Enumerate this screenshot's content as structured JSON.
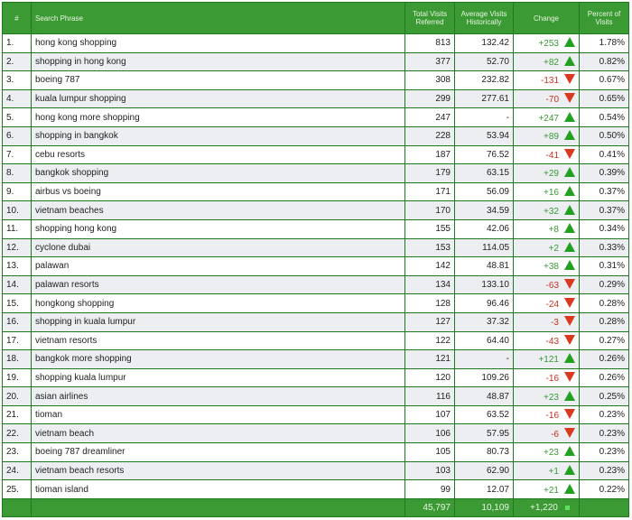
{
  "header": {
    "index": "#",
    "phrase": "Search Phrase",
    "total": "Total Visits Referred",
    "average": "Average Visits Historically",
    "change": "Change",
    "percent": "Percent of Visits"
  },
  "rows": [
    {
      "n": "1.",
      "phrase": "hong kong shopping",
      "total": "813",
      "avg": "132.42",
      "change": "+253",
      "dir": "up",
      "pct": "1.78%"
    },
    {
      "n": "2.",
      "phrase": "shopping in hong kong",
      "total": "377",
      "avg": "52.70",
      "change": "+82",
      "dir": "up",
      "pct": "0.82%"
    },
    {
      "n": "3.",
      "phrase": "boeing 787",
      "total": "308",
      "avg": "232.82",
      "change": "-131",
      "dir": "down",
      "pct": "0.67%"
    },
    {
      "n": "4.",
      "phrase": "kuala lumpur shopping",
      "total": "299",
      "avg": "277.61",
      "change": "-70",
      "dir": "down",
      "pct": "0.65%"
    },
    {
      "n": "5.",
      "phrase": "hong kong more shopping",
      "total": "247",
      "avg": "-",
      "change": "+247",
      "dir": "up",
      "pct": "0.54%"
    },
    {
      "n": "6.",
      "phrase": "shopping in bangkok",
      "total": "228",
      "avg": "53.94",
      "change": "+89",
      "dir": "up",
      "pct": "0.50%"
    },
    {
      "n": "7.",
      "phrase": "cebu resorts",
      "total": "187",
      "avg": "76.52",
      "change": "-41",
      "dir": "down",
      "pct": "0.41%"
    },
    {
      "n": "8.",
      "phrase": "bangkok shopping",
      "total": "179",
      "avg": "63.15",
      "change": "+29",
      "dir": "up",
      "pct": "0.39%"
    },
    {
      "n": "9.",
      "phrase": "airbus vs boeing",
      "total": "171",
      "avg": "56.09",
      "change": "+16",
      "dir": "up",
      "pct": "0.37%"
    },
    {
      "n": "10.",
      "phrase": "vietnam beaches",
      "total": "170",
      "avg": "34.59",
      "change": "+32",
      "dir": "up",
      "pct": "0.37%"
    },
    {
      "n": "11.",
      "phrase": "shopping hong kong",
      "total": "155",
      "avg": "42.06",
      "change": "+8",
      "dir": "up",
      "pct": "0.34%"
    },
    {
      "n": "12.",
      "phrase": "cyclone dubai",
      "total": "153",
      "avg": "114.05",
      "change": "+2",
      "dir": "up",
      "pct": "0.33%"
    },
    {
      "n": "13.",
      "phrase": "palawan",
      "total": "142",
      "avg": "48.81",
      "change": "+38",
      "dir": "up",
      "pct": "0.31%"
    },
    {
      "n": "14.",
      "phrase": "palawan resorts",
      "total": "134",
      "avg": "133.10",
      "change": "-63",
      "dir": "down",
      "pct": "0.29%"
    },
    {
      "n": "15.",
      "phrase": "hongkong shopping",
      "total": "128",
      "avg": "96.46",
      "change": "-24",
      "dir": "down",
      "pct": "0.28%"
    },
    {
      "n": "16.",
      "phrase": "shopping in kuala lumpur",
      "total": "127",
      "avg": "37.32",
      "change": "-3",
      "dir": "down",
      "pct": "0.28%"
    },
    {
      "n": "17.",
      "phrase": "vietnam resorts",
      "total": "122",
      "avg": "64.40",
      "change": "-43",
      "dir": "down",
      "pct": "0.27%"
    },
    {
      "n": "18.",
      "phrase": "bangkok more shopping",
      "total": "121",
      "avg": "-",
      "change": "+121",
      "dir": "up",
      "pct": "0.26%"
    },
    {
      "n": "19.",
      "phrase": "shopping kuala lumpur",
      "total": "120",
      "avg": "109.26",
      "change": "-16",
      "dir": "down",
      "pct": "0.26%"
    },
    {
      "n": "20.",
      "phrase": "asian airlines",
      "total": "116",
      "avg": "48.87",
      "change": "+23",
      "dir": "up",
      "pct": "0.25%"
    },
    {
      "n": "21.",
      "phrase": "tioman",
      "total": "107",
      "avg": "63.52",
      "change": "-16",
      "dir": "down",
      "pct": "0.23%"
    },
    {
      "n": "22.",
      "phrase": "vietnam beach",
      "total": "106",
      "avg": "57.95",
      "change": "-6",
      "dir": "down",
      "pct": "0.23%"
    },
    {
      "n": "23.",
      "phrase": "boeing 787 dreamliner",
      "total": "105",
      "avg": "80.73",
      "change": "+23",
      "dir": "up",
      "pct": "0.23%"
    },
    {
      "n": "24.",
      "phrase": "vietnam beach resorts",
      "total": "103",
      "avg": "62.90",
      "change": "+1",
      "dir": "up",
      "pct": "0.23%"
    },
    {
      "n": "25.",
      "phrase": "tioman island",
      "total": "99",
      "avg": "12.07",
      "change": "+21",
      "dir": "up",
      "pct": "0.22%"
    }
  ],
  "footer": {
    "total": "45,797",
    "avg": "10,109",
    "change": "+1,220"
  },
  "colors": {
    "header": "#3c9a35",
    "up": "#22a020",
    "down": "#d83a20"
  }
}
